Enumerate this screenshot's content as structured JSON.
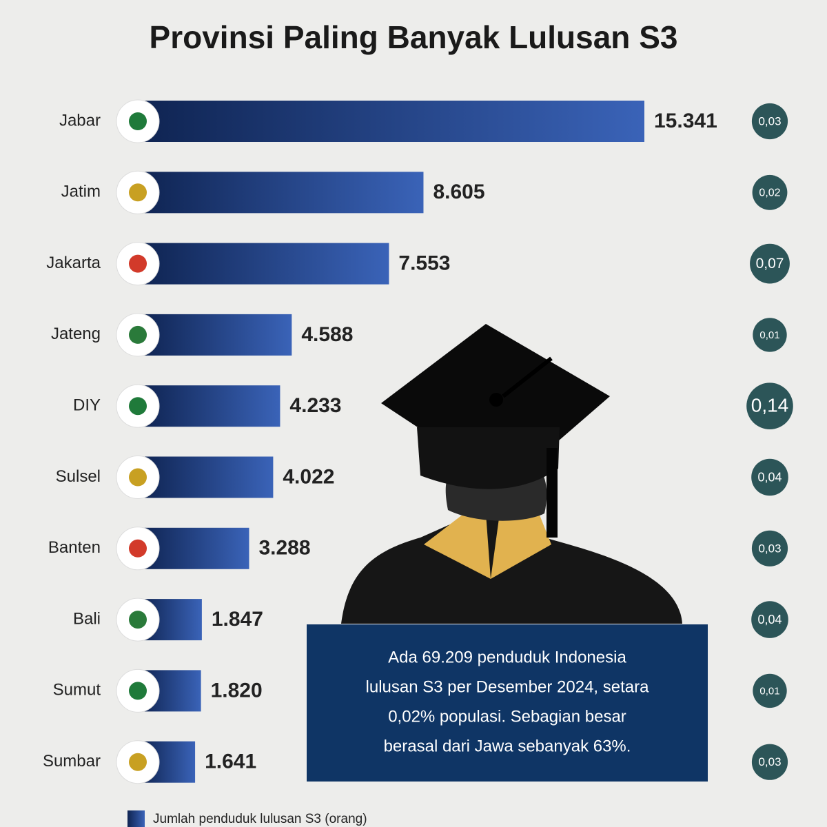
{
  "chart_data": {
    "type": "bar",
    "orientation": "horizontal",
    "title": "Provinsi Paling Banyak Lulusan S3",
    "categories": [
      "Jabar",
      "Jatim",
      "Jakarta",
      "Jateng",
      "DIY",
      "Sulsel",
      "Banten",
      "Bali",
      "Sumut",
      "Sumbar"
    ],
    "series": [
      {
        "name": "Jumlah penduduk lulusan S3 (orang)",
        "color": "#3a63b8",
        "values": [
          15341,
          8605,
          7553,
          4588,
          4233,
          4022,
          3288,
          1847,
          1820,
          1641
        ],
        "value_labels": [
          "15.341",
          "8.605",
          "7.553",
          "4.588",
          "4.233",
          "4.022",
          "3.288",
          "1.847",
          "1.820",
          "1.641"
        ]
      }
    ],
    "share": {
      "color": "#2c5558",
      "values": [
        0.03,
        0.02,
        0.07,
        0.01,
        0.14,
        0.04,
        0.03,
        0.04,
        0.01,
        0.03
      ],
      "value_labels": [
        "0,03",
        "0,02",
        "0,07",
        "0,01",
        "0,14",
        "0,04",
        "0,03",
        "0,04",
        "0,01",
        "0,03"
      ]
    },
    "annotation": [
      "Ada 69.209 penduduk Indonesia",
      "lulusan S3 per Desember 2024, setara",
      "0,02% populasi. Sebagian besar",
      "berasal dari Jawa sebanyak 63%."
    ]
  }
}
